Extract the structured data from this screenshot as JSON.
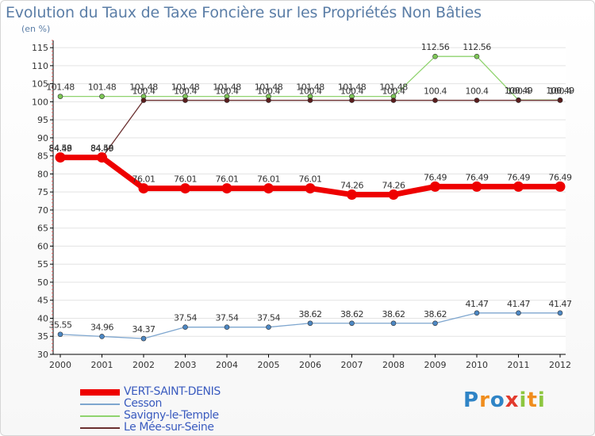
{
  "chart_data": {
    "type": "line",
    "title": "Evolution du Taux de Taxe Foncière sur les Propriétés Non Bâties",
    "unit_label": "(en %)",
    "x": [
      "2000",
      "2001",
      "2002",
      "2003",
      "2004",
      "2005",
      "2006",
      "2007",
      "2008",
      "2009",
      "2010",
      "2011",
      "2012"
    ],
    "ylim": [
      30,
      117
    ],
    "yticks": [
      30,
      35,
      40,
      45,
      50,
      55,
      60,
      65,
      70,
      75,
      80,
      85,
      90,
      95,
      100,
      105,
      110,
      115
    ],
    "series": [
      {
        "name": "Savigny-le-Temple",
        "color": "#8fd36e",
        "dot": "#7ec757",
        "width": 1.3,
        "values": [
          101.48,
          101.48,
          101.48,
          101.48,
          101.48,
          101.48,
          101.48,
          101.48,
          101.48,
          112.56,
          112.56,
          100.49,
          100.49
        ],
        "labels": [
          "101.48",
          "101.48",
          "101.48",
          "101.48",
          "101.48",
          "101.48",
          "101.48",
          "101.48",
          "101.48",
          "112.56",
          "112.56",
          "100.49",
          "100.49"
        ]
      },
      {
        "name": "Le Mée-sur-Seine",
        "color": "#6b3030",
        "dot": "#5a1d1d",
        "width": 1.3,
        "values": [
          84.49,
          84.49,
          100.4,
          100.4,
          100.4,
          100.4,
          100.4,
          100.4,
          100.4,
          100.4,
          100.4,
          100.4,
          100.4
        ],
        "labels": [
          "84.49",
          "84.49",
          "100.4",
          "100.4",
          "100.4",
          "100.4",
          "100.4",
          "100.4",
          "100.4",
          "100.4",
          "100.4",
          "100.4",
          "100.4"
        ]
      },
      {
        "name": "Cesson",
        "color": "#7ea6cf",
        "dot": "#4d88c4",
        "width": 1.3,
        "values": [
          35.55,
          34.96,
          34.37,
          37.54,
          37.54,
          37.54,
          38.62,
          38.62,
          38.62,
          38.62,
          41.47,
          41.47,
          41.47
        ],
        "labels": [
          "35.55",
          "34.96",
          "34.37",
          "37.54",
          "37.54",
          "37.54",
          "38.62",
          "38.62",
          "38.62",
          "38.62",
          "41.47",
          "41.47",
          "41.47"
        ]
      },
      {
        "name": "VERT-SAINT-DENIS",
        "color": "#ee0000",
        "dot": "#ee0000",
        "width": 7,
        "values": [
          84.58,
          84.58,
          76.01,
          76.01,
          76.01,
          76.01,
          76.01,
          74.26,
          74.26,
          76.49,
          76.49,
          76.49,
          76.49
        ],
        "labels": [
          "84.58",
          "84.58",
          "76.01",
          "76.01",
          "76.01",
          "76.01",
          "76.01",
          "74.26",
          "74.26",
          "76.49",
          "76.49",
          "76.49",
          "76.49"
        ]
      }
    ],
    "legend": [
      {
        "name": "VERT-SAINT-DENIS",
        "color": "#ee0000",
        "height": 8
      },
      {
        "name": "Cesson",
        "color": "#7ea6cf",
        "height": 2
      },
      {
        "name": "Savigny-le-Temple",
        "color": "#8fd36e",
        "height": 2
      },
      {
        "name": "Le Mée-sur-Seine",
        "color": "#6b3030",
        "height": 2
      }
    ]
  },
  "brand": {
    "letters": [
      {
        "ch": "P",
        "color": "#2f84c6"
      },
      {
        "ch": "r",
        "color": "#f08d1d"
      },
      {
        "ch": "o",
        "color": "#2f84c6"
      },
      {
        "ch": "x",
        "color": "#e23a2d"
      },
      {
        "ch": "i",
        "color": "#8dc63f"
      },
      {
        "ch": "t",
        "color": "#f08d1d"
      },
      {
        "ch": "i",
        "color": "#8dc63f"
      }
    ]
  }
}
